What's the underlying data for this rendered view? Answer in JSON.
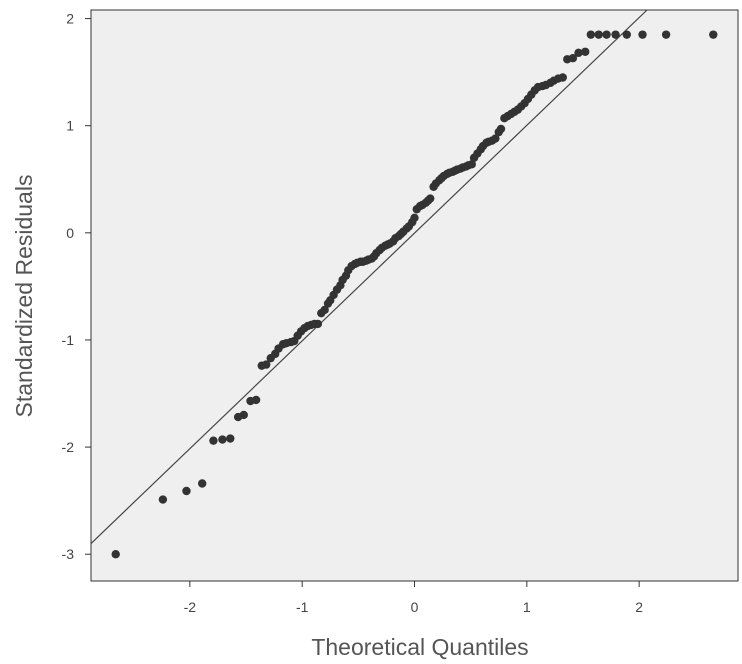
{
  "chart_data": {
    "type": "scatter",
    "title": "",
    "xlabel": "Theoretical Quantiles",
    "ylabel": "Standardized Residuals",
    "xlim": [
      -2.88,
      2.88
    ],
    "ylim": [
      -3.25,
      2.08
    ],
    "xticks": [
      "-2",
      "-1",
      "0",
      "1",
      "2"
    ],
    "yticks": [
      "2",
      "1",
      "0",
      "-1",
      "-2",
      "-3"
    ],
    "grid": false,
    "reference_line": {
      "x": [
        -2.88,
        2.07
      ],
      "y": [
        -2.9,
        2.08
      ]
    },
    "colors": {
      "plot_background": "#efefef",
      "points": "#333333",
      "line": "#444444"
    },
    "series": [
      {
        "x": [
          -2.66,
          -2.24,
          -2.03,
          -1.89,
          -1.79,
          -1.71,
          -1.64,
          -1.57,
          -1.52,
          -1.46,
          -1.41,
          -1.36,
          -1.32,
          -1.28,
          -1.24,
          -1.21,
          -1.17,
          -1.14,
          -1.1,
          -1.07,
          -1.04,
          -1.01,
          -0.98,
          -0.95,
          -0.92,
          -0.89,
          -0.86,
          -0.83,
          -0.8,
          -0.77,
          -0.75,
          -0.72,
          -0.69,
          -0.66,
          -0.64,
          -0.61,
          -0.59,
          -0.56,
          -0.53,
          -0.51,
          -0.48,
          -0.46,
          -0.43,
          -0.41,
          -0.38,
          -0.36,
          -0.34,
          -0.31,
          -0.29,
          -0.26,
          -0.24,
          -0.22,
          -0.19,
          -0.17,
          -0.14,
          -0.12,
          -0.1,
          -0.07,
          -0.05,
          -0.02,
          0.0,
          0.02,
          0.05,
          0.07,
          0.1,
          0.12,
          0.14,
          0.17,
          0.19,
          0.22,
          0.24,
          0.26,
          0.29,
          0.31,
          0.34,
          0.36,
          0.38,
          0.41,
          0.43,
          0.46,
          0.48,
          0.51,
          0.53,
          0.56,
          0.59,
          0.61,
          0.64,
          0.66,
          0.69,
          0.72,
          0.75,
          0.77,
          0.8,
          0.83,
          0.86,
          0.89,
          0.92,
          0.95,
          0.98,
          1.01,
          1.04,
          1.07,
          1.1,
          1.14,
          1.17,
          1.21,
          1.24,
          1.28,
          1.32,
          1.36,
          1.41,
          1.46,
          1.52,
          1.57,
          1.64,
          1.71,
          1.79,
          1.89,
          2.03,
          2.24,
          2.66
        ],
        "y": [
          -3.0,
          -2.49,
          -2.41,
          -2.34,
          -1.94,
          -1.93,
          -1.92,
          -1.72,
          -1.7,
          -1.57,
          -1.56,
          -1.24,
          -1.23,
          -1.17,
          -1.13,
          -1.08,
          -1.04,
          -1.03,
          -1.02,
          -1.01,
          -0.96,
          -0.92,
          -0.89,
          -0.87,
          -0.86,
          -0.85,
          -0.85,
          -0.75,
          -0.72,
          -0.66,
          -0.63,
          -0.58,
          -0.53,
          -0.49,
          -0.44,
          -0.4,
          -0.35,
          -0.31,
          -0.29,
          -0.28,
          -0.27,
          -0.27,
          -0.26,
          -0.25,
          -0.24,
          -0.22,
          -0.19,
          -0.16,
          -0.14,
          -0.12,
          -0.11,
          -0.1,
          -0.08,
          -0.05,
          -0.03,
          -0.01,
          0.01,
          0.04,
          0.06,
          0.1,
          0.14,
          0.22,
          0.25,
          0.26,
          0.28,
          0.3,
          0.32,
          0.43,
          0.46,
          0.49,
          0.51,
          0.53,
          0.55,
          0.56,
          0.57,
          0.58,
          0.59,
          0.6,
          0.61,
          0.62,
          0.63,
          0.64,
          0.7,
          0.74,
          0.78,
          0.81,
          0.84,
          0.85,
          0.86,
          0.88,
          0.94,
          0.97,
          1.07,
          1.09,
          1.11,
          1.13,
          1.15,
          1.18,
          1.21,
          1.25,
          1.29,
          1.33,
          1.36,
          1.37,
          1.38,
          1.4,
          1.42,
          1.44,
          1.45,
          1.62,
          1.63,
          1.68,
          1.69,
          1.85,
          1.85,
          1.85,
          1.85,
          1.85,
          1.85,
          1.85,
          1.85
        ]
      }
    ]
  }
}
